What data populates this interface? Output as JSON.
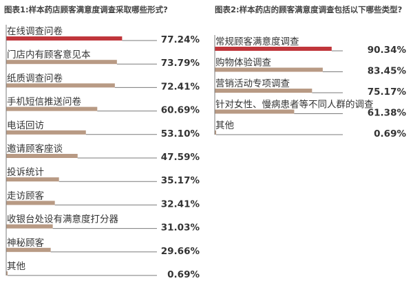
{
  "chart_data": [
    {
      "type": "bar",
      "orientation": "horizontal",
      "title": "图表1:样本药店顾客满意度调查采取哪些形式?",
      "categories": [
        "在线调查问卷",
        "门店内有顾客意见本",
        "纸质调查问卷",
        "手机短信推送问卷",
        "电话回访",
        "邀请顾客座谈",
        "投诉统计",
        "走访顾客",
        "收银台处设有满意度打分器",
        "神秘顾客",
        "其他"
      ],
      "values": [
        77.24,
        73.79,
        72.41,
        60.69,
        53.1,
        47.59,
        35.17,
        32.41,
        31.03,
        29.66,
        0.69
      ],
      "value_labels": [
        "77.24%",
        "73.79%",
        "72.41%",
        "60.69%",
        "53.10%",
        "47.59%",
        "35.17%",
        "32.41%",
        "31.03%",
        "29.66%",
        "0.69%"
      ],
      "unit": "%",
      "xlim": [
        0,
        100
      ],
      "highlight_index": 0
    },
    {
      "type": "bar",
      "orientation": "horizontal",
      "title": "图表2:样本药店的顾客满意度调查包括以下哪些类型?",
      "categories": [
        "常规顾客满意度调查",
        "购物体验调查",
        "营销活动专项调查",
        "针对女性、慢病患者等不同人群的调查",
        "其他"
      ],
      "values": [
        90.34,
        83.45,
        75.17,
        61.38,
        0.69
      ],
      "value_labels": [
        "90.34%",
        "83.45%",
        "75.17%",
        "61.38%",
        "0.69%"
      ],
      "unit": "%",
      "xlim": [
        0,
        100
      ],
      "highlight_index": 0
    }
  ],
  "colors": {
    "highlight": "#c0363b",
    "bar": "#b89a84",
    "axis": "#7a7a7a",
    "text": "#333333"
  }
}
